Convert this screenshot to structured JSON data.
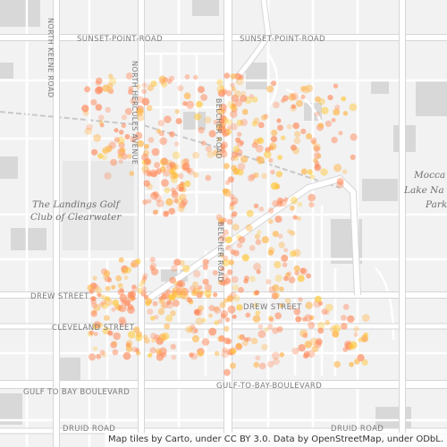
{
  "map": {
    "tile_provider": "Carto",
    "background_color": "#f2f2f2",
    "road_color": "#ffffff",
    "road_casing_color": "#d6d6d6",
    "block_color": "#e6e6e6",
    "building_color": "#d3d3d3",
    "rail_color": "#c8c8c8",
    "point_colors": {
      "cool": "#ff8a5b",
      "warm": "#ffb347",
      "hot": "#ffc83a"
    }
  },
  "labels": {
    "sunset_point_left": "SUNSET-POINT-ROAD",
    "sunset_point_right": "SUNSET-POINT-ROAD",
    "north_keene": "NORTH KEENE ROAD",
    "north_hercules": "NORTH HERCULES AVENUE",
    "belcher_north": "BELCHER ROAD",
    "belcher_south": "BELCHER ROAD",
    "drew_left": "DREW STREET",
    "drew_right": "DREW STREET",
    "cleveland": "CLEVELAND STREET",
    "gulf_left": "GULF TO BAY BOULEVARD",
    "gulf_right": "GULF-TO-BAY-BOULEVARD",
    "druid_left": "DRUID ROAD",
    "druid_right": "DRUID ROAD",
    "golf_club_line1": "The Landings Golf",
    "golf_club_line2": "Club of Clearwater",
    "park_line1": "Mocca",
    "park_line2": "Lake Na",
    "park_line3": "Park"
  },
  "attribution": "Map tiles by Carto, under CC BY 3.0. Data by OpenStreetMap, under ODbL."
}
